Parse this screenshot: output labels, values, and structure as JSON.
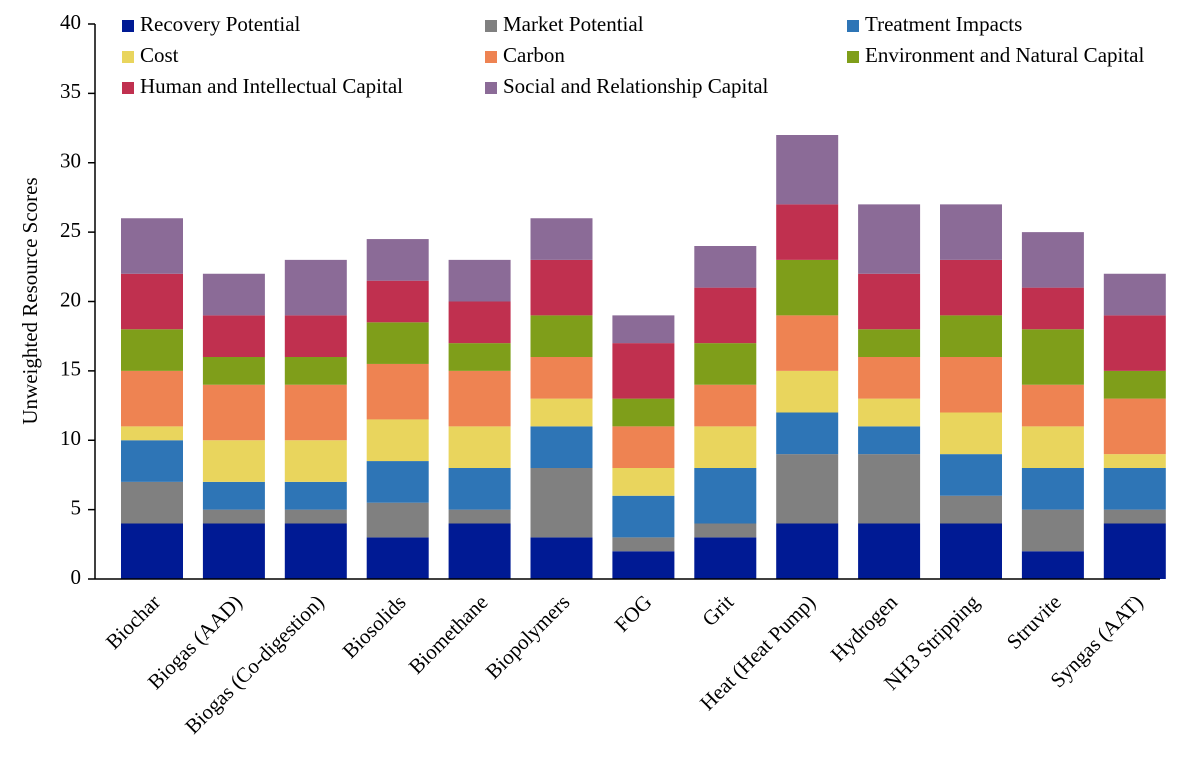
{
  "chart_data": {
    "type": "stacked_bar",
    "ylabel": "Unweighted Resource Scores",
    "categories": [
      "Biochar",
      "Biogas (AAD)",
      "Biogas (Co-digestion)",
      "Biosolids",
      "Biomethane",
      "Biopolymers",
      "FOG",
      "Grit",
      "Heat (Heat Pump)",
      "Hydrogen",
      "NH3 Stripping",
      "Struvite",
      "Syngas (AAT)"
    ],
    "series": [
      {
        "name": "Recovery Potential",
        "color": "#001a94",
        "values": [
          4,
          4,
          4,
          3,
          4,
          3,
          2,
          3,
          4,
          4,
          4,
          2,
          4
        ]
      },
      {
        "name": "Market Potential",
        "color": "#808080",
        "values": [
          3,
          1,
          1,
          2.5,
          1,
          5,
          1,
          1,
          5,
          5,
          2,
          3,
          1
        ]
      },
      {
        "name": "Treatment Impacts",
        "color": "#2e75b6",
        "values": [
          3,
          2,
          2,
          3,
          3,
          3,
          3,
          4,
          3,
          2,
          3,
          3,
          3
        ]
      },
      {
        "name": "Cost",
        "color": "#e9d55d",
        "values": [
          1,
          3,
          3,
          3,
          3,
          2,
          2,
          3,
          3,
          2,
          3,
          3,
          1
        ]
      },
      {
        "name": "Carbon",
        "color": "#ee8352",
        "values": [
          4,
          4,
          4,
          4,
          4,
          3,
          3,
          3,
          4,
          3,
          4,
          3,
          4
        ]
      },
      {
        "name": "Environment and Natural Capital",
        "color": "#7f9e1a",
        "values": [
          3,
          2,
          2,
          3,
          2,
          3,
          2,
          3,
          4,
          2,
          3,
          4,
          2
        ]
      },
      {
        "name": "Human and Intellectual Capital",
        "color": "#c0304f",
        "values": [
          4,
          3,
          3,
          3,
          3,
          4,
          4,
          4,
          4,
          4,
          4,
          3,
          4
        ]
      },
      {
        "name": "Social and Relationship Capital",
        "color": "#8b6b97",
        "values": [
          4,
          3,
          4,
          3,
          3,
          3,
          2,
          3,
          5,
          5,
          4,
          4,
          3
        ]
      }
    ],
    "ylim": [
      0,
      40
    ],
    "yticks": [
      0,
      5,
      10,
      15,
      20,
      25,
      30,
      35,
      40
    ],
    "legend": "top"
  }
}
